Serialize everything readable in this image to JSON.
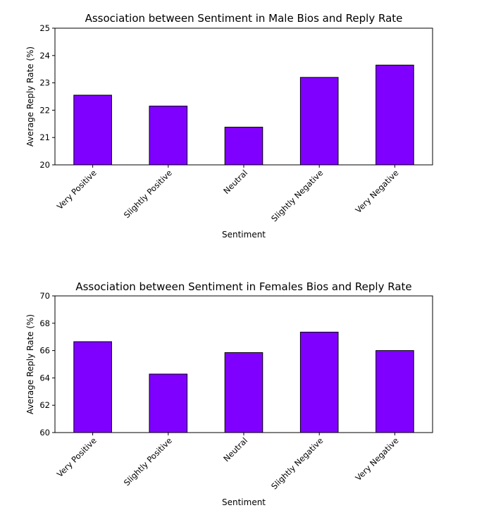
{
  "chart_data": [
    {
      "type": "bar",
      "title": "Association between Sentiment in Male Bios and Reply Rate",
      "xlabel": "Sentiment",
      "ylabel": "Average Reply Rate (%)",
      "categories": [
        "Very Positive",
        "Slightly Positive",
        "Neutral",
        "Slightly Negative",
        "Very Negative"
      ],
      "values": [
        22.55,
        22.15,
        21.38,
        23.2,
        23.65
      ],
      "ylim": [
        20,
        25
      ],
      "yticks": [
        20,
        21,
        22,
        23,
        24,
        25
      ],
      "grid": false,
      "bar_color": "#7F00FF",
      "edge_color": "#000000"
    },
    {
      "type": "bar",
      "title": "Association between Sentiment in Females Bios and Reply Rate",
      "xlabel": "Sentiment",
      "ylabel": "Average Reply Rate (%)",
      "categories": [
        "Very Positive",
        "Slightly Positive",
        "Neutral",
        "Slightly Negative",
        "Very Negative"
      ],
      "values": [
        66.65,
        64.28,
        65.85,
        67.35,
        66.0
      ],
      "ylim": [
        60,
        70
      ],
      "yticks": [
        60,
        62,
        64,
        66,
        68,
        70
      ],
      "grid": false,
      "bar_color": "#7F00FF",
      "edge_color": "#000000"
    }
  ]
}
